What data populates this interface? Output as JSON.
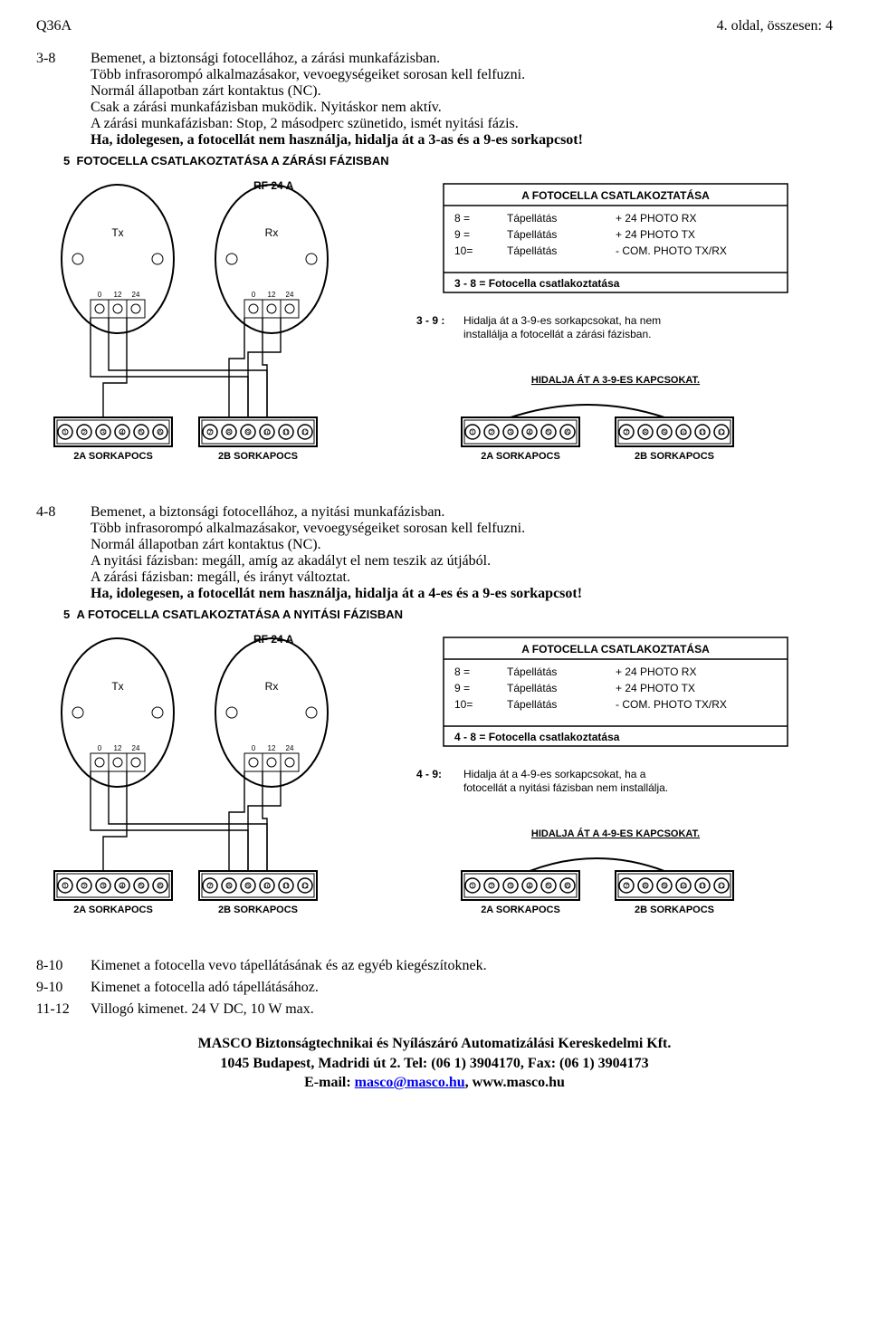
{
  "header": {
    "left": "Q36A",
    "right": "4. oldal, összesen: 4"
  },
  "sections": [
    {
      "label": "3-8",
      "lines": [
        "Bemenet, a biztonsági fotocellához, a zárási munkafázisban.",
        "Több infrasorompó alkalmazásakor, vevoegységeiket sorosan kell felfuzni.",
        "Normál állapotban zárt kontaktus (NC).",
        "Csak a zárási munkafázisban muködik. Nyitáskor nem aktív.",
        "A zárási munkafázisban: Stop, 2 másodperc szünetido, ismét nyitási fázis."
      ],
      "bold": "Ha, idolegesen, a fotocellát nem használja, hidalja át a 3-as és a 9-es sorkapcsot!"
    },
    {
      "label": "4-8",
      "lines": [
        "Bemenet, a biztonsági fotocellához, a nyitási munkafázisban.",
        "Több infrasorompó alkalmazásakor, vevoegységeiket sorosan kell felfuzni.",
        "Normál állapotban zárt kontaktus (NC).",
        "A nyitási fázisban: megáll, amíg az akadályt el nem teszik az útjából.",
        "A zárási fázisban: megáll, és irányt változtat."
      ],
      "bold": "Ha, idolegesen, a fotocellát nem használja, hidalja át a 4-es és a 9-es sorkapcsot!"
    }
  ],
  "diagrams": [
    {
      "title_num": "5",
      "title": "FOTOCELLA CSATLAKOZTATÁSA A ZÁRÁSI FÁZISBAN",
      "rf_label": "RF 24 A",
      "tx": "Tx",
      "rx": "Rx",
      "term_marks": [
        "0",
        "12",
        "24"
      ],
      "box": {
        "title": "A FOTOCELLA CSATLAKOZTATÁSA",
        "rows": [
          [
            "8  =",
            "Tápellátás",
            "+ 24 PHOTO RX"
          ],
          [
            "9  =",
            "Tápellátás",
            "+ 24 PHOTO TX"
          ],
          [
            "10=",
            "Tápellátás",
            "- COM. PHOTO TX/RX"
          ]
        ],
        "footer": "3 - 8 = Fotocella csatlakoztatása"
      },
      "note_label": "3 - 9 :",
      "note_text": "Hidalja át a 3-9-es sorkapcsokat, ha nem installálja a fotocellát a zárási fázisban.",
      "jumper_title": "HIDALJA ÁT A 3-9-ES KAPCSOKAT.",
      "blocks": {
        "a_left": "2A SORKAPOCS",
        "b_left": "2B SORKAPOCS",
        "a_right": "2A SORKAPOCS",
        "b_right": "2B SORKAPOCS"
      },
      "left_nums": [
        "1",
        "2",
        "3",
        "4",
        "5",
        "6"
      ],
      "right_nums": [
        "7",
        "8",
        "9",
        "10",
        "11",
        "12"
      ]
    },
    {
      "title_num": "5",
      "title": "A FOTOCELLA CSATLAKOZTATÁSA A NYITÁSI FÁZISBAN",
      "rf_label": "RF 24 A",
      "tx": "Tx",
      "rx": "Rx",
      "term_marks": [
        "0",
        "12",
        "24"
      ],
      "box": {
        "title": "A FOTOCELLA CSATLAKOZTATÁSA",
        "rows": [
          [
            "8  =",
            "Tápellátás",
            "+ 24 PHOTO RX"
          ],
          [
            "9  =",
            "Tápellátás",
            "+ 24 PHOTO TX"
          ],
          [
            "10=",
            "Tápellátás",
            "- COM. PHOTO TX/RX"
          ]
        ],
        "footer": "4 - 8 = Fotocella csatlakoztatása"
      },
      "note_label": "4 - 9:",
      "note_text": "Hidalja át a 4-9-es sorkapcsokat, ha a fotocellát a nyitási fázisban nem installálja.",
      "jumper_title": "HIDALJA ÁT A 4-9-ES KAPCSOKAT.",
      "blocks": {
        "a_left": "2A SORKAPOCS",
        "b_left": "2B SORKAPOCS",
        "a_right": "2A SORKAPOCS",
        "b_right": "2B SORKAPOCS"
      },
      "left_nums": [
        "1",
        "2",
        "3",
        "4",
        "5",
        "6"
      ],
      "right_nums": [
        "7",
        "8",
        "9",
        "10",
        "11",
        "12"
      ]
    }
  ],
  "tail": [
    {
      "label": "8-10",
      "text": "Kimenet a fotocella vevo tápellátásának és az egyéb kiegészítoknek."
    },
    {
      "label": "9-10",
      "text": "Kimenet a fotocella adó tápellátásához."
    },
    {
      "label": "11-12",
      "text": "Villogó kimenet. 24 V DC, 10 W max."
    }
  ],
  "footer": {
    "l1": "MASCO Biztonságtechnikai és Nyílászáró Automatizálási Kereskedelmi Kft.",
    "l2": "1045 Budapest, Madridi út 2. Tel: (06 1) 3904170, Fax: (06 1) 3904173",
    "l3a": "E-mail: ",
    "email": "masco@masco.hu",
    "l3b": ", www.masco.hu"
  },
  "style": {
    "stroke": "#000",
    "stroke_w": 1.4,
    "font_small": 11,
    "font_med": 12,
    "font_title": 12
  }
}
